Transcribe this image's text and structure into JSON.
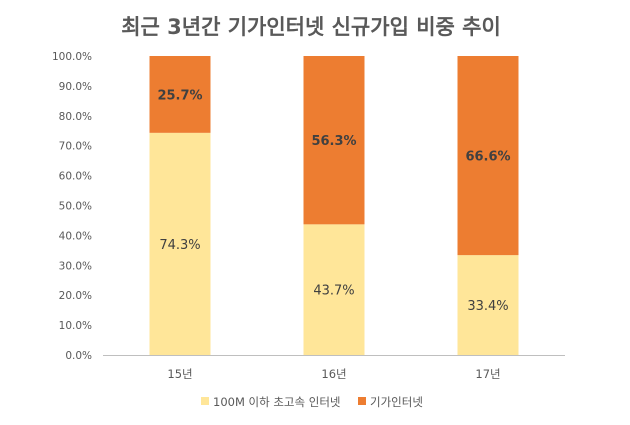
{
  "chart_data": {
    "type": "bar",
    "stacked": true,
    "percent": true,
    "title": "최근 3년간 기가인터넷 신규가입 비중 추이",
    "categories": [
      "15년",
      "16년",
      "17년"
    ],
    "series": [
      {
        "name": "100M 이하 초고속 인터넷",
        "values": [
          74.3,
          43.7,
          33.4
        ],
        "labels": [
          "74.3%",
          "43.7%",
          "33.4%"
        ],
        "color": "#FFE699"
      },
      {
        "name": "기가인터넷",
        "values": [
          25.7,
          56.3,
          66.6
        ],
        "labels": [
          "25.7%",
          "56.3%",
          "66.6%"
        ],
        "color": "#ED7D31"
      }
    ],
    "ylim": [
      0,
      100
    ],
    "yticks": [
      "0.0%",
      "10.0%",
      "20.0%",
      "30.0%",
      "40.0%",
      "50.0%",
      "60.0%",
      "70.0%",
      "80.0%",
      "90.0%",
      "100.0%"
    ],
    "grid": false,
    "legend_position": "bottom",
    "axis_color": "#BFBFBF",
    "text_color": "#595959"
  }
}
